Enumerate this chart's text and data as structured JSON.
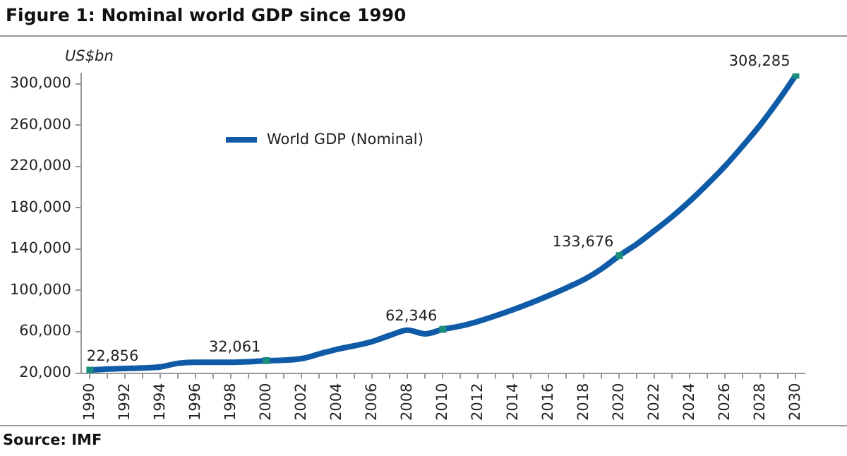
{
  "chart_data": {
    "type": "line",
    "title": "Figure 1: Nominal world GDP since 1990",
    "ylabel": "US$bn",
    "annotations": [
      "Source: IMF"
    ],
    "categories": [
      "1990",
      null,
      "1992",
      null,
      "1994",
      null,
      "1996",
      null,
      "1998",
      null,
      "2000",
      null,
      "2002",
      null,
      "2004",
      null,
      "2006",
      null,
      "2008",
      null,
      "2010",
      null,
      "2012",
      null,
      "2014",
      null,
      "2016",
      null,
      "2018",
      null,
      "2020",
      null,
      "2022",
      null,
      "2024",
      null,
      "2026",
      null,
      "2028",
      null,
      "2030"
    ],
    "series": [
      {
        "name": "World GDP (Nominal)",
        "color": "#0f5ba7",
        "values": [
          22856,
          24000,
          24500,
          25000,
          26000,
          29500,
          30500,
          30500,
          30500,
          31000,
          32061,
          32500,
          34000,
          38500,
          43000,
          46500,
          50500,
          56500,
          61500,
          58000,
          62346,
          65500,
          70000,
          75500,
          81500,
          88000,
          95000,
          102500,
          110500,
          121000,
          133676,
          145000,
          158000,
          171500,
          186500,
          203000,
          220500,
          240000,
          260500,
          283500,
          308285
        ],
        "value_labels": [
          "22,856",
          null,
          null,
          null,
          null,
          null,
          null,
          null,
          null,
          null,
          "32,061",
          null,
          null,
          null,
          null,
          null,
          null,
          null,
          null,
          null,
          "62,346",
          null,
          null,
          null,
          null,
          null,
          null,
          null,
          null,
          null,
          "133,676",
          null,
          null,
          null,
          null,
          null,
          null,
          null,
          null,
          null,
          "308,285"
        ]
      }
    ],
    "ylim": [
      20000,
      310000
    ],
    "yticks": [
      {
        "value": 20000,
        "label": "20,000"
      },
      {
        "value": 60000,
        "label": "60,000"
      },
      {
        "value": 100000,
        "label": "100,000"
      },
      {
        "value": 140000,
        "label": "140,000"
      },
      {
        "value": 180000,
        "label": "180,000"
      },
      {
        "value": 220000,
        "label": "220,000"
      },
      {
        "value": 260000,
        "label": "260,000"
      },
      {
        "value": 300000,
        "label": "300,000"
      }
    ],
    "grid": false,
    "legend": "top left",
    "line_style": "solid"
  }
}
